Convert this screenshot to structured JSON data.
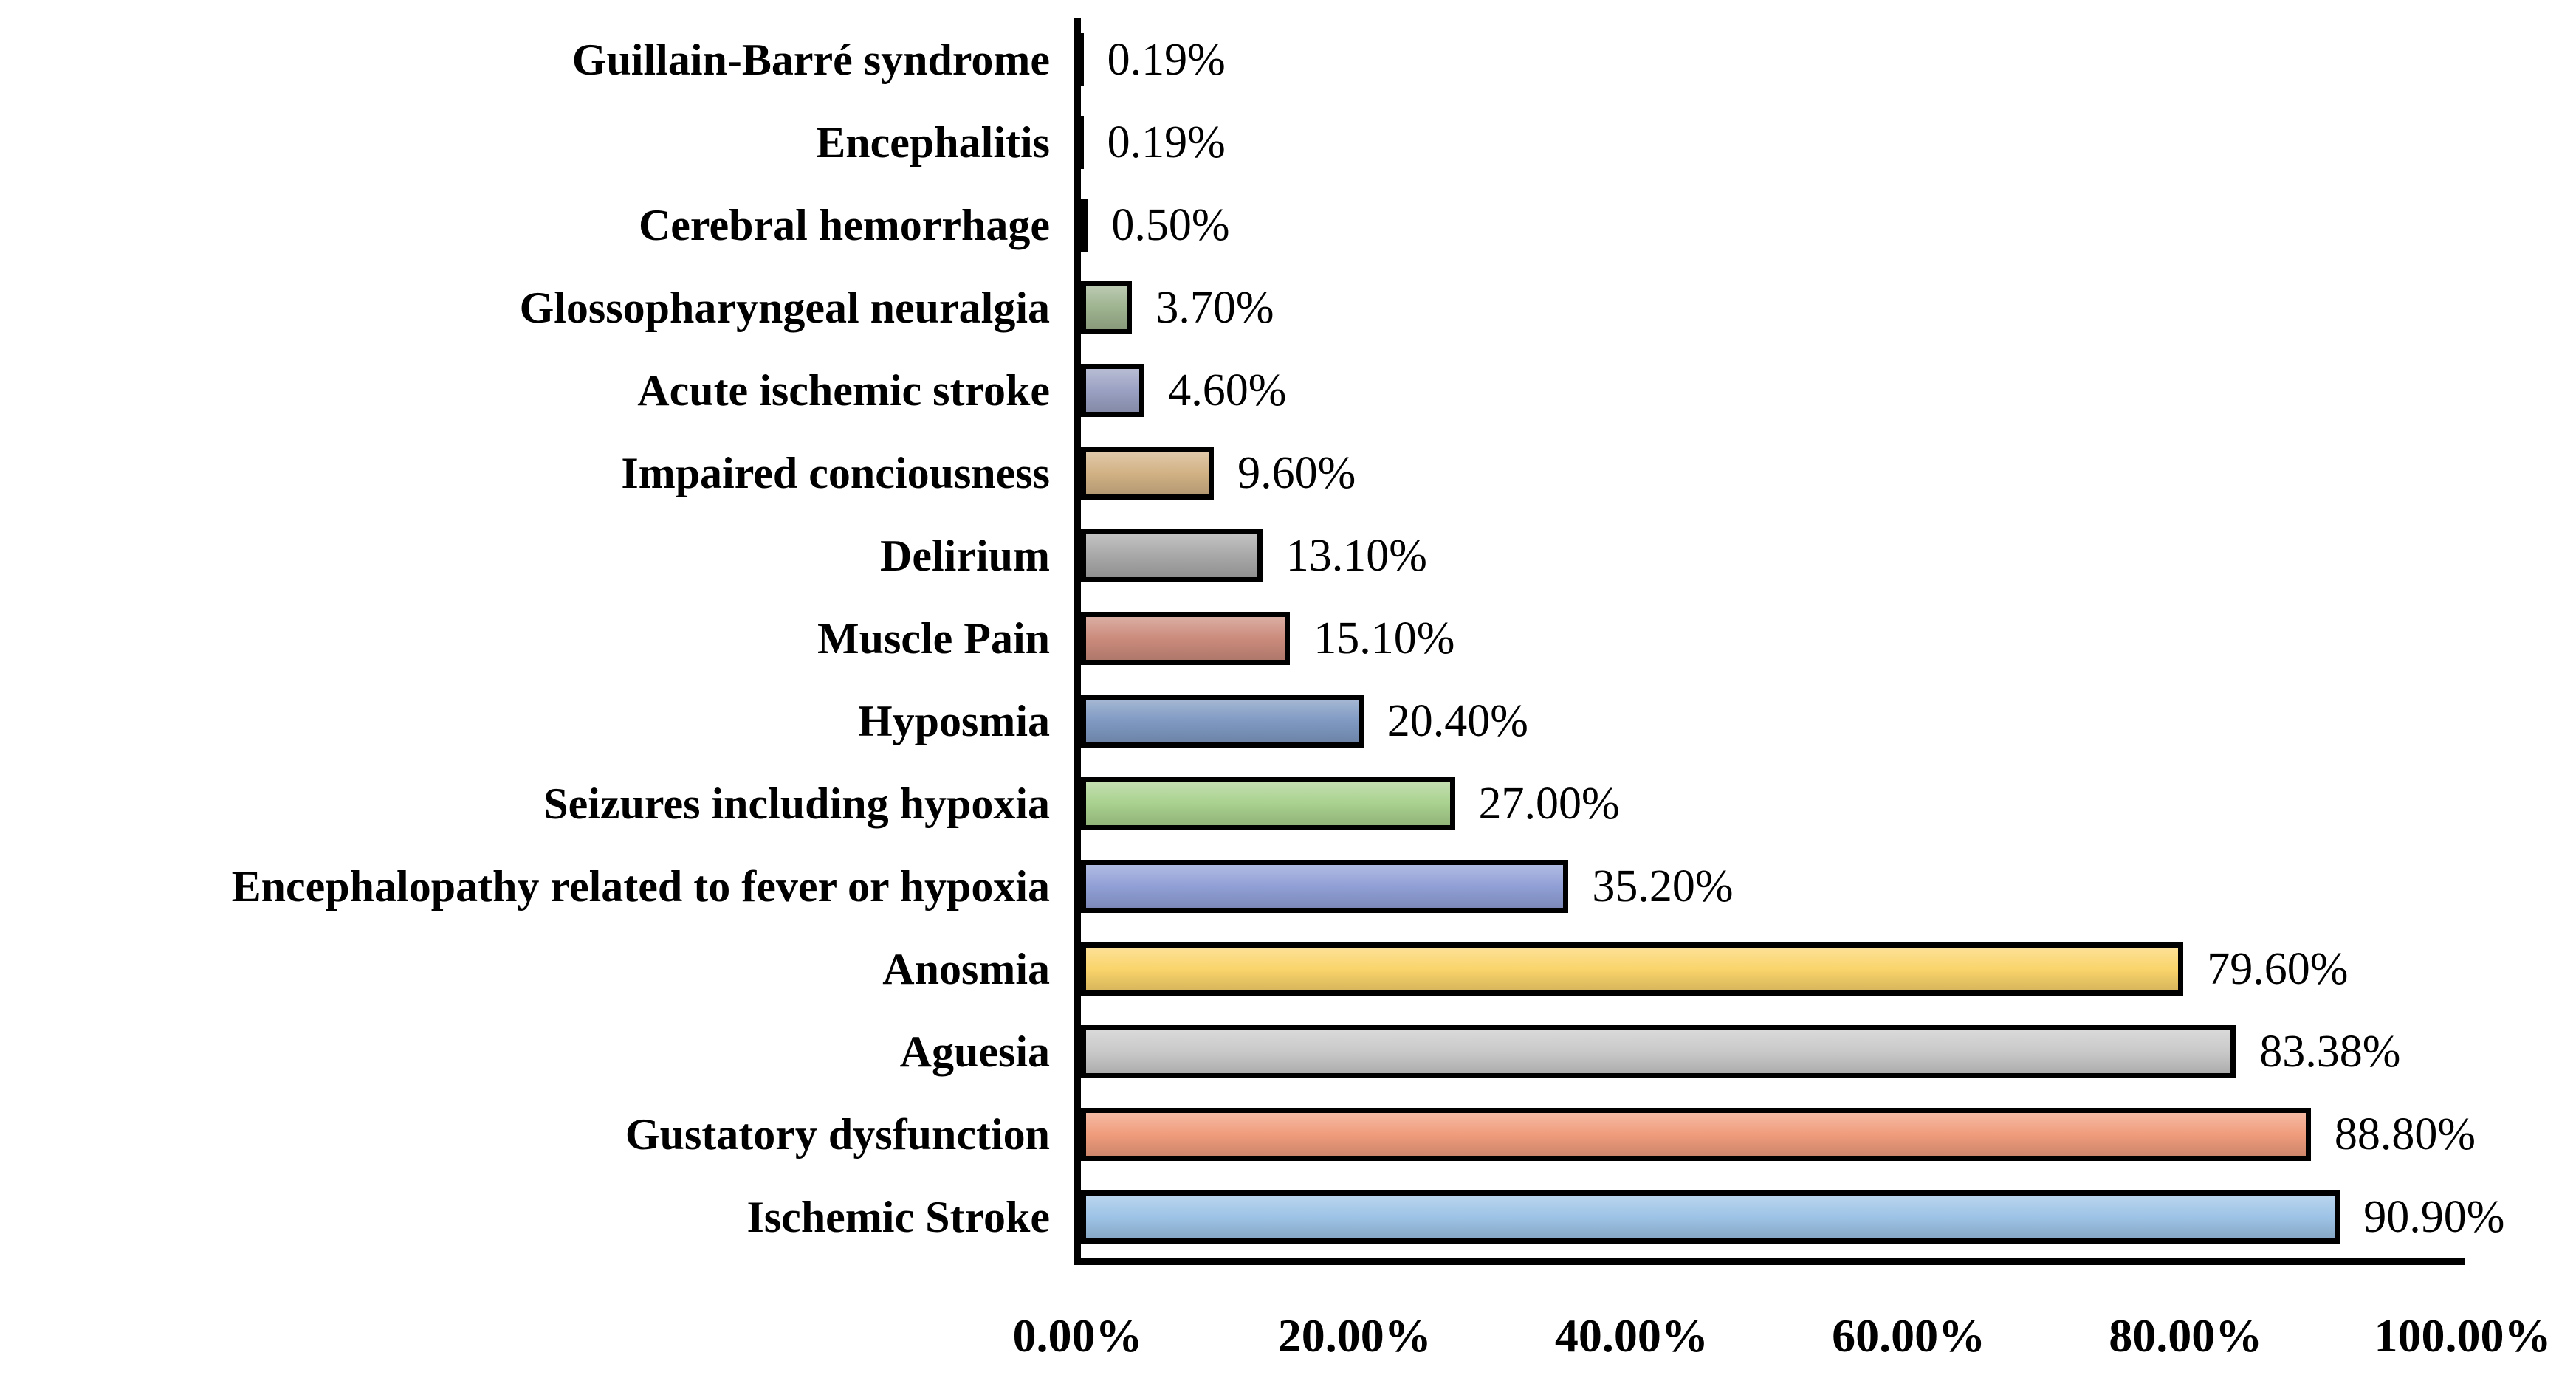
{
  "chart_data": {
    "type": "bar",
    "orientation": "horizontal",
    "title": "",
    "xlabel": "",
    "ylabel": "",
    "xlim": [
      0,
      100
    ],
    "grid": false,
    "legend": "none",
    "x_tick_labels": [
      "0.00%",
      "20.00%",
      "40.00%",
      "60.00%",
      "80.00%",
      "100.00%"
    ],
    "x_tick_values": [
      0,
      20,
      40,
      60,
      80,
      100
    ],
    "categories": [
      "Guillain-Barré syndrome",
      "Encephalitis",
      "Cerebral hemorrhage",
      "Glossopharyngeal neuralgia",
      "Acute ischemic stroke",
      "Impaired conciousness",
      "Delirium",
      "Muscle Pain",
      "Hyposmia",
      "Seizures including hypoxia",
      "Encephalopathy related to fever or hypoxia",
      "Anosmia",
      "Aguesia",
      "Gustatory dysfunction",
      "Ischemic Stroke"
    ],
    "values": [
      0.19,
      0.19,
      0.5,
      3.7,
      4.6,
      9.6,
      13.1,
      15.1,
      20.4,
      27.0,
      35.2,
      79.6,
      83.38,
      88.8,
      90.9
    ],
    "labels": [
      "0.19%",
      "0.19%",
      "0.50%",
      "3.70%",
      "4.60%",
      "9.60%",
      "13.10%",
      "15.10%",
      "20.40%",
      "27.00%",
      "35.20%",
      "79.60%",
      "83.38%",
      "88.80%",
      "90.90%"
    ],
    "bar_colors": [
      "#000000",
      "#000000",
      "#000000",
      "#9EB38F",
      "#9AA1C2",
      "#D2B285",
      "#A8A8A8",
      "#CB8B7C",
      "#7F99C2",
      "#A9D18E",
      "#909FD6",
      "#FAD46B",
      "#C9C9C9",
      "#F09C7C",
      "#9DC3E6"
    ],
    "axis_color": "#000000"
  }
}
